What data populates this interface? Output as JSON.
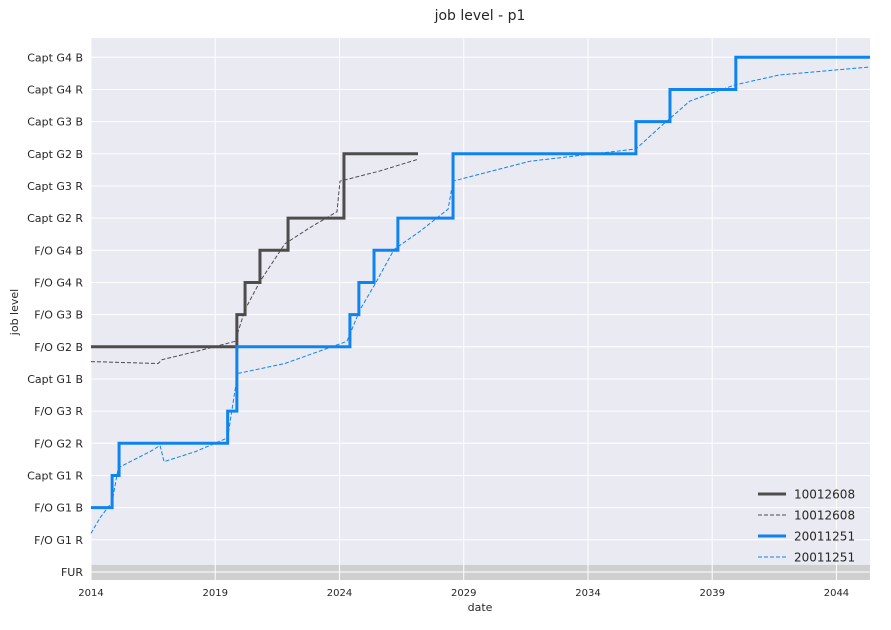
{
  "chart_data": {
    "type": "line",
    "title": "job level - p1",
    "x_label": "date",
    "y_label": "job level",
    "xlim": [
      2014,
      2045.35
    ],
    "ylim": [
      -0.25,
      16.6
    ],
    "xticks": [
      2014,
      2019,
      2024,
      2029,
      2034,
      2039,
      2044
    ],
    "yticks": [
      {
        "value": 0,
        "label": "FUR"
      },
      {
        "value": 1,
        "label": "F/O G1 R"
      },
      {
        "value": 2,
        "label": "F/O G1 B"
      },
      {
        "value": 3,
        "label": "Capt G1 R"
      },
      {
        "value": 4,
        "label": "F/O G2 R"
      },
      {
        "value": 5,
        "label": "F/O G3 R"
      },
      {
        "value": 6,
        "label": "Capt G1 B"
      },
      {
        "value": 7,
        "label": "F/O G2 B"
      },
      {
        "value": 8,
        "label": "F/O G3 B"
      },
      {
        "value": 9,
        "label": "F/O G4 R"
      },
      {
        "value": 10,
        "label": "F/O G4 B"
      },
      {
        "value": 11,
        "label": "Capt G2 R"
      },
      {
        "value": 12,
        "label": "Capt G3 R"
      },
      {
        "value": 13,
        "label": "Capt G2 B"
      },
      {
        "value": 14,
        "label": "Capt G3 B"
      },
      {
        "value": 15,
        "label": "Capt G4 R"
      },
      {
        "value": 16,
        "label": "Capt G4 B"
      }
    ],
    "grid": true,
    "legend": "lower right",
    "series": [
      {
        "name": "10012608",
        "color": "#4d4d4d",
        "style": "solid",
        "drawstyle": "steps-post",
        "x": [
          2014,
          2019.87,
          2020.2,
          2020.8,
          2021.93,
          2024.18,
          2027.16
        ],
        "values": [
          7,
          8,
          9,
          10,
          11,
          13,
          13
        ]
      },
      {
        "name": "10012608",
        "color": "#4d4d4d",
        "style": "dashed",
        "drawstyle": "default",
        "x": [
          2014,
          2016.7,
          2016.86,
          2018.2,
          2019.8,
          2020.2,
          2020.8,
          2021.8,
          2022.8,
          2023.9,
          2024.02,
          2025.6,
          2027.16
        ],
        "values": [
          6.54,
          6.48,
          6.6,
          6.85,
          7.17,
          8.16,
          9.03,
          10.2,
          10.7,
          11.2,
          12.15,
          12.46,
          12.83
        ]
      },
      {
        "name": "20011251",
        "color": "#0f84f0",
        "style": "solid",
        "drawstyle": "steps-post",
        "x": [
          2014,
          2014.85,
          2015.13,
          2019.5,
          2019.87,
          2024.42,
          2024.78,
          2025.39,
          2026.35,
          2028.57,
          2035.93,
          2037.3,
          2039.95,
          2045.35
        ],
        "values": [
          2,
          3,
          4,
          5,
          7,
          8,
          9,
          10,
          11,
          13,
          14,
          15,
          16,
          16
        ]
      },
      {
        "name": "20011251",
        "color": "#0f84f0",
        "style": "dashed",
        "drawstyle": "default",
        "x": [
          2014,
          2014.36,
          2014.85,
          2015.1,
          2016.37,
          2016.78,
          2016.94,
          2018.2,
          2019.5,
          2019.9,
          2021.8,
          2024.3,
          2024.83,
          2025.4,
          2026.2,
          2027.24,
          2028.37,
          2028.57,
          2031.67,
          2035.93,
          2036.9,
          2038.1,
          2039.9,
          2041.7,
          2045.35
        ],
        "values": [
          1.2,
          1.68,
          2.18,
          3.24,
          3.74,
          3.93,
          3.43,
          3.74,
          4.17,
          6.17,
          6.48,
          7.17,
          8.16,
          8.91,
          10.03,
          10.59,
          11.28,
          12.15,
          12.77,
          13.15,
          13.83,
          14.64,
          15.14,
          15.45,
          15.7
        ]
      }
    ]
  }
}
